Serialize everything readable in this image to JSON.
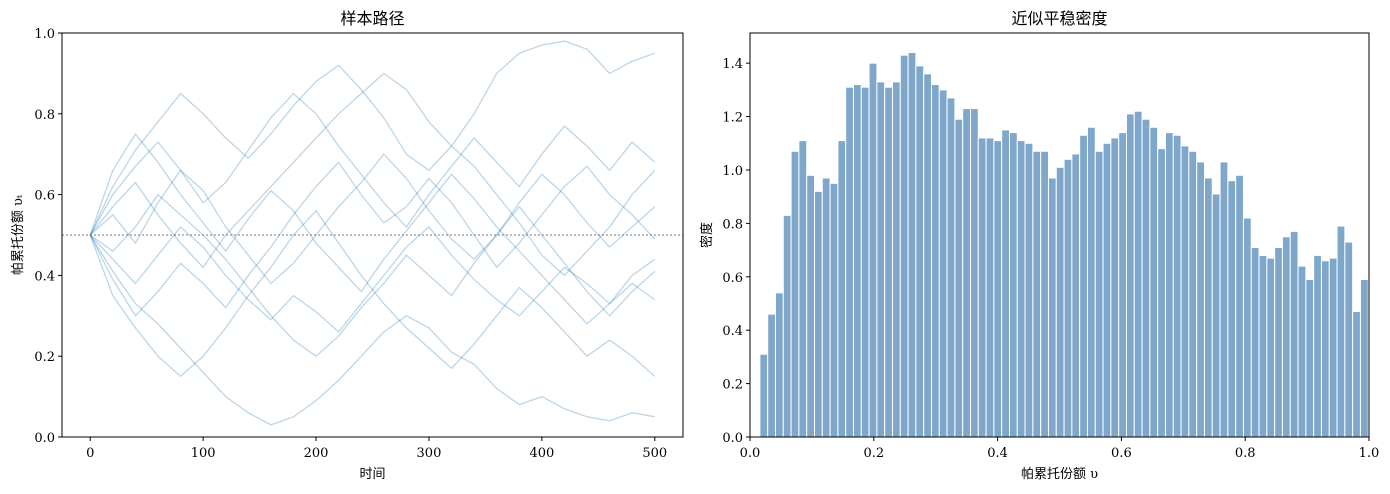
{
  "chart_data": [
    {
      "type": "line",
      "title": "样本路径",
      "xlabel": "时间",
      "ylabel": "帕累托份额 υₜ",
      "color": "#1f77b4",
      "alpha": 0.3,
      "hline": 0.5,
      "xlim": [
        -25,
        525
      ],
      "xticks": [
        0,
        100,
        200,
        300,
        400,
        500
      ],
      "ylim": [
        0,
        1
      ],
      "yticks": [
        {
          "value": 0,
          "label": "0.0"
        },
        {
          "value": 0.2,
          "label": "0.2"
        },
        {
          "value": 0.4,
          "label": "0.4"
        },
        {
          "value": 0.6,
          "label": "0.6"
        },
        {
          "value": 0.8,
          "label": "0.8"
        },
        {
          "value": 1,
          "label": "1.0"
        }
      ],
      "x": [
        0,
        20,
        40,
        60,
        80,
        100,
        120,
        140,
        160,
        180,
        200,
        220,
        240,
        260,
        280,
        300,
        320,
        340,
        360,
        380,
        400,
        420,
        440,
        460,
        480,
        500
      ],
      "series": [
        {
          "values": [
            0.5,
            0.62,
            0.71,
            0.78,
            0.85,
            0.8,
            0.74,
            0.69,
            0.75,
            0.82,
            0.88,
            0.92,
            0.86,
            0.79,
            0.7,
            0.66,
            0.72,
            0.8,
            0.9,
            0.95,
            0.97,
            0.98,
            0.96,
            0.9,
            0.93,
            0.95
          ]
        },
        {
          "values": [
            0.5,
            0.41,
            0.33,
            0.28,
            0.22,
            0.16,
            0.1,
            0.06,
            0.03,
            0.05,
            0.09,
            0.14,
            0.2,
            0.26,
            0.3,
            0.27,
            0.21,
            0.18,
            0.12,
            0.08,
            0.1,
            0.07,
            0.05,
            0.04,
            0.06,
            0.05
          ]
        },
        {
          "values": [
            0.5,
            0.55,
            0.48,
            0.58,
            0.66,
            0.61,
            0.52,
            0.45,
            0.38,
            0.43,
            0.5,
            0.57,
            0.63,
            0.7,
            0.64,
            0.56,
            0.49,
            0.44,
            0.5,
            0.58,
            0.65,
            0.6,
            0.53,
            0.47,
            0.52,
            0.57
          ]
        },
        {
          "values": [
            0.5,
            0.44,
            0.38,
            0.45,
            0.52,
            0.47,
            0.4,
            0.34,
            0.29,
            0.35,
            0.31,
            0.26,
            0.33,
            0.4,
            0.47,
            0.52,
            0.45,
            0.39,
            0.34,
            0.3,
            0.36,
            0.42,
            0.38,
            0.33,
            0.4,
            0.44
          ]
        },
        {
          "values": [
            0.5,
            0.6,
            0.67,
            0.73,
            0.66,
            0.58,
            0.63,
            0.71,
            0.79,
            0.85,
            0.8,
            0.72,
            0.65,
            0.58,
            0.52,
            0.6,
            0.67,
            0.74,
            0.68,
            0.62,
            0.7,
            0.77,
            0.72,
            0.66,
            0.73,
            0.68
          ]
        },
        {
          "values": [
            0.5,
            0.35,
            0.27,
            0.2,
            0.15,
            0.2,
            0.27,
            0.35,
            0.42,
            0.5,
            0.56,
            0.48,
            0.4,
            0.33,
            0.27,
            0.22,
            0.17,
            0.23,
            0.3,
            0.37,
            0.32,
            0.26,
            0.2,
            0.24,
            0.2,
            0.15
          ]
        },
        {
          "values": [
            0.5,
            0.57,
            0.63,
            0.55,
            0.48,
            0.42,
            0.5,
            0.56,
            0.62,
            0.68,
            0.74,
            0.8,
            0.85,
            0.9,
            0.86,
            0.78,
            0.72,
            0.67,
            0.6,
            0.53,
            0.45,
            0.4,
            0.46,
            0.52,
            0.6,
            0.66
          ]
        },
        {
          "values": [
            0.5,
            0.46,
            0.52,
            0.6,
            0.55,
            0.5,
            0.44,
            0.37,
            0.3,
            0.24,
            0.2,
            0.25,
            0.32,
            0.38,
            0.45,
            0.4,
            0.35,
            0.43,
            0.5,
            0.57,
            0.5,
            0.43,
            0.36,
            0.3,
            0.36,
            0.41
          ]
        },
        {
          "values": [
            0.5,
            0.66,
            0.75,
            0.68,
            0.6,
            0.53,
            0.46,
            0.54,
            0.61,
            0.56,
            0.48,
            0.42,
            0.36,
            0.44,
            0.51,
            0.58,
            0.65,
            0.59,
            0.52,
            0.46,
            0.4,
            0.34,
            0.28,
            0.33,
            0.38,
            0.34
          ]
        },
        {
          "values": [
            0.5,
            0.39,
            0.3,
            0.36,
            0.43,
            0.38,
            0.32,
            0.4,
            0.47,
            0.55,
            0.62,
            0.68,
            0.6,
            0.53,
            0.57,
            0.64,
            0.58,
            0.5,
            0.42,
            0.48,
            0.55,
            0.62,
            0.67,
            0.6,
            0.55,
            0.49
          ]
        }
      ]
    },
    {
      "type": "histogram",
      "title": "近似平稳密度",
      "xlabel": "帕累托份额 υ",
      "ylabel": "密度",
      "color": "#7fa7cb",
      "xlim": [
        0,
        1
      ],
      "xticks": [
        {
          "value": 0,
          "label": "0.0"
        },
        {
          "value": 0.2,
          "label": "0.2"
        },
        {
          "value": 0.4,
          "label": "0.4"
        },
        {
          "value": 0.6,
          "label": "0.6"
        },
        {
          "value": 0.8,
          "label": "0.8"
        },
        {
          "value": 1,
          "label": "1.0"
        }
      ],
      "ylim": [
        0,
        1.513
      ],
      "yticks": [
        {
          "value": 0,
          "label": "0.0"
        },
        {
          "value": 0.2,
          "label": "0.2"
        },
        {
          "value": 0.4,
          "label": "0.4"
        },
        {
          "value": 0.6,
          "label": "0.6"
        },
        {
          "value": 0.8,
          "label": "0.8"
        },
        {
          "value": 1,
          "label": "1.0"
        },
        {
          "value": 1.2,
          "label": "1.2"
        },
        {
          "value": 1.4,
          "label": "1.4"
        }
      ],
      "bins": [
        0.016,
        0.0286,
        0.0412,
        0.0538,
        0.0664,
        0.079,
        0.0916,
        0.1042,
        0.1168,
        0.1294,
        0.142,
        0.1546,
        0.1672,
        0.1798,
        0.1924,
        0.205,
        0.2176,
        0.2302,
        0.2428,
        0.2554,
        0.268,
        0.2806,
        0.2932,
        0.3058,
        0.3184,
        0.331,
        0.3436,
        0.3562,
        0.3688,
        0.3814,
        0.394,
        0.4066,
        0.4192,
        0.4318,
        0.4444,
        0.457,
        0.4696,
        0.4822,
        0.4948,
        0.5074,
        0.52,
        0.5326,
        0.5452,
        0.5578,
        0.5704,
        0.583,
        0.5956,
        0.6082,
        0.6208,
        0.6334,
        0.646,
        0.6586,
        0.6712,
        0.6838,
        0.6964,
        0.709,
        0.7216,
        0.7342,
        0.7468,
        0.7594,
        0.772,
        0.7846,
        0.7972,
        0.8098,
        0.8224,
        0.835,
        0.8476,
        0.8602,
        0.8728,
        0.8854,
        0.898,
        0.9106,
        0.9232,
        0.9358,
        0.9484,
        0.961,
        0.9736,
        0.9862,
        0.9988
      ],
      "values": [
        0.31,
        0.46,
        0.54,
        0.83,
        1.07,
        1.11,
        0.98,
        0.92,
        0.97,
        0.95,
        1.11,
        1.31,
        1.32,
        1.31,
        1.4,
        1.33,
        1.31,
        1.33,
        1.43,
        1.44,
        1.39,
        1.36,
        1.32,
        1.3,
        1.27,
        1.19,
        1.23,
        1.23,
        1.12,
        1.12,
        1.11,
        1.15,
        1.14,
        1.11,
        1.1,
        1.07,
        1.07,
        0.97,
        1.01,
        1.04,
        1.06,
        1.13,
        1.16,
        1.07,
        1.1,
        1.12,
        1.14,
        1.21,
        1.22,
        1.19,
        1.16,
        1.08,
        1.14,
        1.13,
        1.09,
        1.07,
        1.03,
        0.97,
        0.91,
        1.03,
        0.96,
        0.98,
        0.82,
        0.71,
        0.68,
        0.67,
        0.71,
        0.75,
        0.77,
        0.64,
        0.59,
        0.68,
        0.66,
        0.67,
        0.79,
        0.73,
        0.47,
        0.59
      ]
    }
  ]
}
